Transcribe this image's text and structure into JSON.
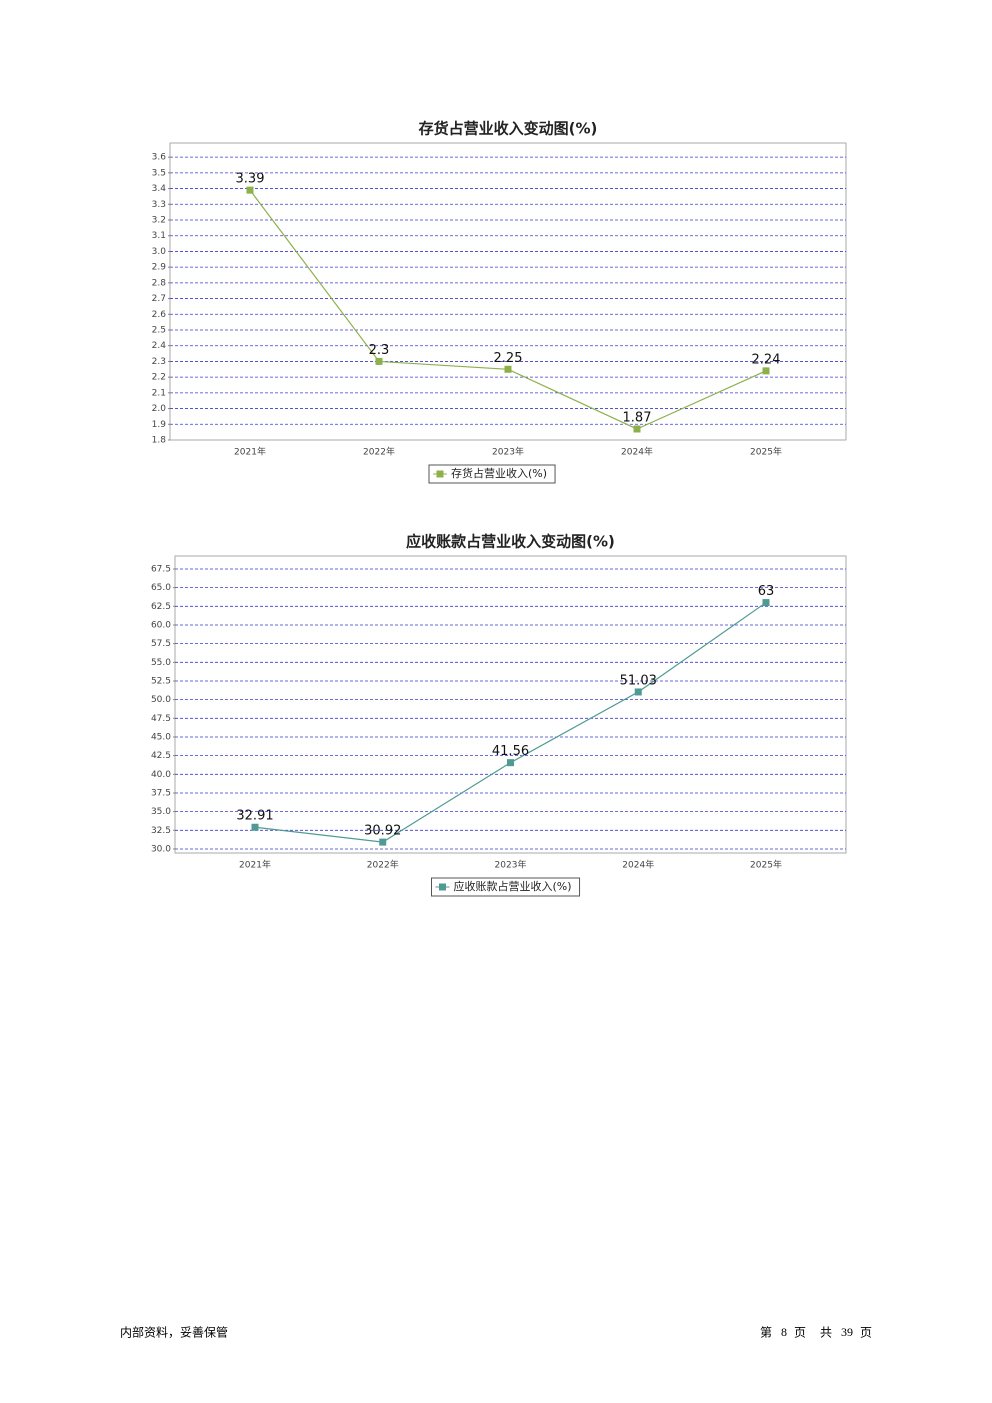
{
  "chart_data": [
    {
      "type": "line",
      "title": "存货占营业收入变动图(%)",
      "categories": [
        "2021年",
        "2022年",
        "2023年",
        "2024年",
        "2025年"
      ],
      "series": [
        {
          "name": "存货占营业收入(%)",
          "color": "#8db04a",
          "values": [
            3.39,
            2.3,
            2.25,
            1.87,
            2.24
          ]
        }
      ],
      "ylim": [
        1.8,
        3.69
      ],
      "yticks": [
        1.8,
        1.9,
        {
          "value": 2,
          "label": "2.0"
        },
        2.1,
        2.2,
        2.3,
        2.4,
        2.5,
        2.6,
        2.7,
        2.8,
        2.9,
        {
          "value": 3,
          "label": "3.0"
        },
        3.1,
        3.2,
        3.3,
        3.4,
        3.5,
        3.6
      ],
      "grid": true,
      "legend": "bottom"
    },
    {
      "type": "line",
      "title": "应收账款占营业收入变动图(%)",
      "categories": [
        "2021年",
        "2022年",
        "2023年",
        "2024年",
        "2025年"
      ],
      "series": [
        {
          "name": "应收账款占营业收入(%)",
          "color": "#4f9a94",
          "values": [
            32.91,
            30.92,
            41.56,
            51.03,
            63
          ]
        }
      ],
      "ylim": [
        29.46,
        69.24
      ],
      "yticks": [
        {
          "value": 30,
          "label": "30.0"
        },
        32.5,
        {
          "value": 35,
          "label": "35.0"
        },
        37.5,
        {
          "value": 40,
          "label": "40.0"
        },
        42.5,
        {
          "value": 45,
          "label": "45.0"
        },
        47.5,
        {
          "value": 50,
          "label": "50.0"
        },
        52.5,
        {
          "value": 55,
          "label": "55.0"
        },
        57.5,
        {
          "value": 60,
          "label": "60.0"
        },
        62.5,
        {
          "value": 65,
          "label": "65.0"
        },
        67.5
      ],
      "grid": true,
      "legend": "bottom"
    }
  ],
  "footer": {
    "left": "内部资料，妥善保管",
    "page_prefix": "第",
    "page": 8,
    "page_suffix": "页",
    "total_prefix": "共",
    "total": 39,
    "total_suffix": "页"
  }
}
